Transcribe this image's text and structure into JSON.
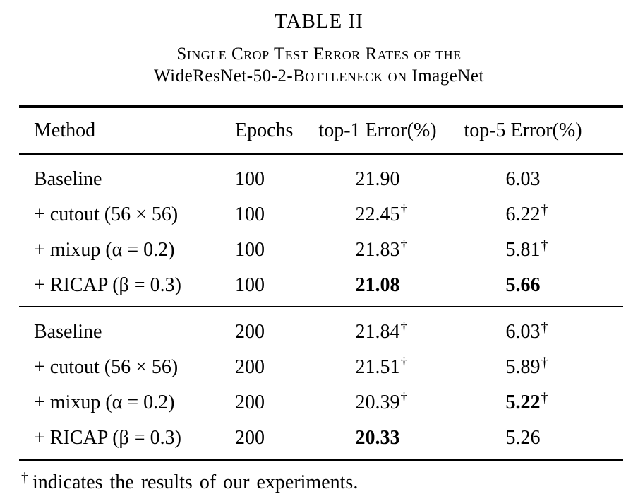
{
  "title": "TABLE II",
  "caption": {
    "line1": "Single Crop Test Error Rates of the",
    "line2_prefix": "WideResNet-50-2-",
    "line2_smallcaps": "Bottleneck on",
    "line2_suffix": " ImageNet"
  },
  "table": {
    "headers": [
      "Method",
      "Epochs",
      "top-1 Error(%)",
      "top-5 Error(%)"
    ],
    "rows": [
      {
        "method": "Baseline",
        "epochs": "100",
        "top1": "21.90",
        "top1_sup": "",
        "top1_bold": false,
        "top5": "6.03",
        "top5_sup": "",
        "top5_bold": false
      },
      {
        "method": "+ cutout (56 × 56)",
        "epochs": "100",
        "top1": "22.45",
        "top1_sup": "†",
        "top1_bold": false,
        "top5": "6.22",
        "top5_sup": "†",
        "top5_bold": false
      },
      {
        "method": "+ mixup (α = 0.2)",
        "epochs": "100",
        "top1": "21.83",
        "top1_sup": "†",
        "top1_bold": false,
        "top5": "5.81",
        "top5_sup": "†",
        "top5_bold": false
      },
      {
        "method": "+ RICAP (β = 0.3)",
        "epochs": "100",
        "top1": "21.08",
        "top1_sup": "",
        "top1_bold": true,
        "top5": "5.66",
        "top5_sup": "",
        "top5_bold": true
      },
      {
        "method": "Baseline",
        "epochs": "200",
        "top1": "21.84",
        "top1_sup": "†",
        "top1_bold": false,
        "top5": "6.03",
        "top5_sup": "†",
        "top5_bold": false
      },
      {
        "method": "+ cutout (56 × 56)",
        "epochs": "200",
        "top1": "21.51",
        "top1_sup": "†",
        "top1_bold": false,
        "top5": "5.89",
        "top5_sup": "†",
        "top5_bold": false
      },
      {
        "method": "+ mixup (α = 0.2)",
        "epochs": "200",
        "top1": "20.39",
        "top1_sup": "†",
        "top1_bold": false,
        "top5": "5.22",
        "top5_sup": "†",
        "top5_bold": true
      },
      {
        "method": "+ RICAP (β = 0.3)",
        "epochs": "200",
        "top1": "20.33",
        "top1_sup": "",
        "top1_bold": true,
        "top5": "5.26",
        "top5_sup": "",
        "top5_bold": false
      }
    ]
  },
  "footnote": {
    "symbol": "†",
    "text": "indicates the results of our experiments."
  },
  "colors": {
    "text": "#000000",
    "background": "#ffffff",
    "rule": "#000000"
  }
}
